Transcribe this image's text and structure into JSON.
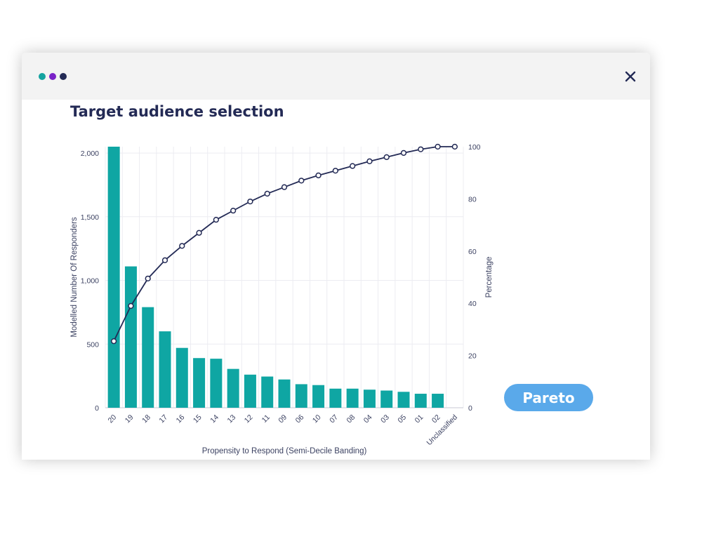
{
  "window": {
    "dots": [
      {
        "name": "window-dot-teal",
        "color": "#14a3a0"
      },
      {
        "name": "window-dot-purple",
        "color": "#7a22c8"
      },
      {
        "name": "window-dot-navy",
        "color": "#232a55"
      }
    ],
    "close_icon": "close-icon"
  },
  "page": {
    "title": "Target audience selection"
  },
  "controls": {
    "pareto_label": "Pareto"
  },
  "colors": {
    "bar": "#0fa6a3",
    "line": "#232a55",
    "grid": "#ececf2",
    "axis_text": "#3c4262",
    "button": "#5aa9ea"
  },
  "chart_data": {
    "type": "bar",
    "title": "",
    "xlabel": "Propensity to Respond (Semi-Decile Banding)",
    "ylabel": "Modelled Number Of Responders",
    "y2label": "Percentage",
    "categories": [
      "20",
      "19",
      "18",
      "17",
      "16",
      "15",
      "14",
      "13",
      "12",
      "11",
      "09",
      "06",
      "10",
      "07",
      "08",
      "04",
      "03",
      "05",
      "01",
      "02",
      "Unclassified"
    ],
    "series": [
      {
        "type": "bar",
        "axis": "left",
        "values": [
          2050,
          1110,
          790,
          600,
          470,
          390,
          385,
          305,
          260,
          245,
          222,
          185,
          178,
          150,
          150,
          142,
          135,
          125,
          110,
          110,
          0
        ]
      },
      {
        "type": "line",
        "axis": "right",
        "values": [
          25.5,
          39,
          49.5,
          56.5,
          62,
          67,
          72,
          75.5,
          79,
          82,
          84.5,
          87,
          89,
          90.8,
          92.6,
          94.4,
          96,
          97.6,
          99,
          100,
          100
        ]
      }
    ],
    "yticks": [
      0,
      500,
      1000,
      1500,
      2000
    ],
    "ytick_labels": [
      "0",
      "500",
      "1,000",
      "1,500",
      "2,000"
    ],
    "ylim": [
      0,
      2050
    ],
    "y2ticks": [
      0,
      20,
      40,
      60,
      80,
      100
    ],
    "y2tick_labels": [
      "0",
      "20",
      "40",
      "60",
      "80",
      "100"
    ],
    "y2lim": [
      0,
      100
    ],
    "grid": true,
    "legend": "none"
  }
}
